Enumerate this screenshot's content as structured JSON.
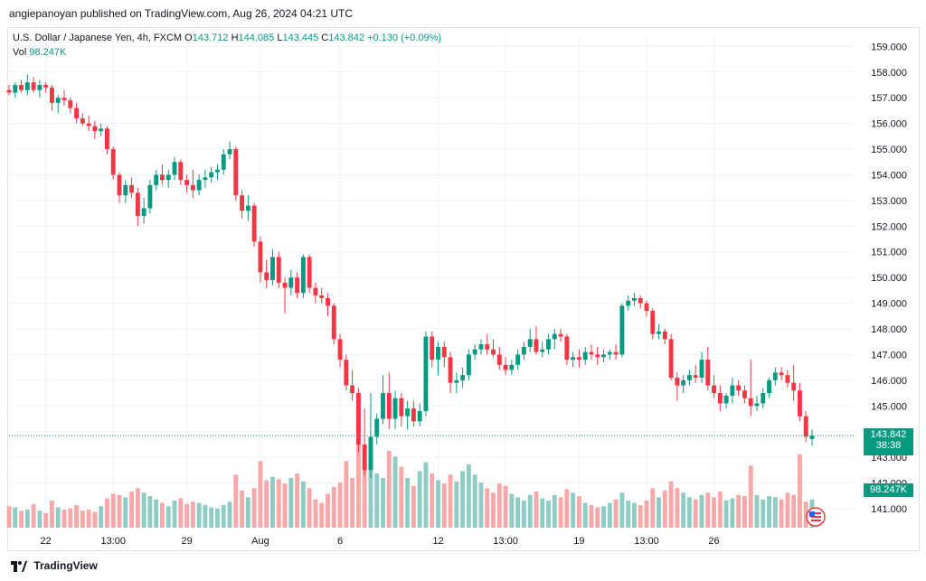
{
  "header": {
    "published_by": "angiepanoyan published on TradingView.com, Aug 26, 2024 04:21 UTC"
  },
  "legend": {
    "symbol": "U.S. Dollar / Japanese Yen, 4h, FXCM",
    "o_label": "O",
    "o_value": "143.712",
    "h_label": "H",
    "h_value": "144.085",
    "l_label": "L",
    "l_value": "143.445",
    "c_label": "C",
    "c_value": "143.842",
    "change": "+0.130 (+0.09%)",
    "vol_label": "Vol",
    "vol_value": "98.247K"
  },
  "badges": {
    "price": "143.842",
    "countdown": "38:38",
    "volume": "98.247K"
  },
  "footer": {
    "brand": "TradingView"
  },
  "colors": {
    "up": "#089981",
    "down": "#f23645",
    "vol_up": "#8fcdc4",
    "vol_down": "#f7a9a9",
    "grid": "#f0f3fa"
  },
  "chart_data": {
    "type": "candlestick",
    "symbol": "USDJPY",
    "timeframe": "4h",
    "y_axis": {
      "ticks": [
        "141.000",
        "142.000",
        "143.000",
        "144.000",
        "145.000",
        "146.000",
        "147.000",
        "148.000",
        "149.000",
        "150.000",
        "151.000",
        "152.000",
        "153.000",
        "154.000",
        "155.000",
        "156.000",
        "157.000",
        "158.000",
        "159.000"
      ],
      "ylim": [
        140.4,
        159.4
      ]
    },
    "x_axis": {
      "ticks": [
        "22",
        "13:00",
        "29",
        "Aug",
        "6",
        "12",
        "13:00",
        "19",
        "13:00",
        "26"
      ],
      "tick_index": [
        6,
        17,
        29,
        41,
        54,
        70,
        81,
        93,
        104,
        115
      ]
    },
    "grid": true,
    "volume_max": 160,
    "bars": [
      {
        "o": 157.3,
        "h": 157.5,
        "l": 157.1,
        "c": 157.2,
        "v": 38
      },
      {
        "o": 157.2,
        "h": 157.6,
        "l": 157.0,
        "c": 157.5,
        "v": 36
      },
      {
        "o": 157.5,
        "h": 157.7,
        "l": 157.2,
        "c": 157.3,
        "v": 30
      },
      {
        "o": 157.3,
        "h": 157.9,
        "l": 157.1,
        "c": 157.6,
        "v": 32
      },
      {
        "o": 157.6,
        "h": 157.8,
        "l": 157.2,
        "c": 157.3,
        "v": 42
      },
      {
        "o": 157.3,
        "h": 157.7,
        "l": 157.0,
        "c": 157.5,
        "v": 30
      },
      {
        "o": 157.5,
        "h": 157.6,
        "l": 157.2,
        "c": 157.4,
        "v": 26
      },
      {
        "o": 157.4,
        "h": 157.5,
        "l": 156.5,
        "c": 156.8,
        "v": 48
      },
      {
        "o": 156.8,
        "h": 157.1,
        "l": 156.4,
        "c": 157.0,
        "v": 36
      },
      {
        "o": 157.0,
        "h": 157.3,
        "l": 156.7,
        "c": 156.9,
        "v": 32
      },
      {
        "o": 156.9,
        "h": 157.0,
        "l": 156.4,
        "c": 156.6,
        "v": 34
      },
      {
        "o": 156.6,
        "h": 156.8,
        "l": 156.0,
        "c": 156.2,
        "v": 40
      },
      {
        "o": 156.2,
        "h": 156.4,
        "l": 155.9,
        "c": 156.0,
        "v": 30
      },
      {
        "o": 156.0,
        "h": 156.3,
        "l": 155.7,
        "c": 155.9,
        "v": 32
      },
      {
        "o": 155.9,
        "h": 156.1,
        "l": 155.4,
        "c": 155.7,
        "v": 28
      },
      {
        "o": 155.7,
        "h": 156.0,
        "l": 155.5,
        "c": 155.8,
        "v": 38
      },
      {
        "o": 155.8,
        "h": 155.9,
        "l": 154.8,
        "c": 155.0,
        "v": 52
      },
      {
        "o": 155.0,
        "h": 155.1,
        "l": 153.8,
        "c": 154.0,
        "v": 60
      },
      {
        "o": 154.0,
        "h": 154.1,
        "l": 152.9,
        "c": 153.2,
        "v": 58
      },
      {
        "o": 153.2,
        "h": 153.8,
        "l": 152.9,
        "c": 153.6,
        "v": 54
      },
      {
        "o": 153.6,
        "h": 153.9,
        "l": 153.1,
        "c": 153.3,
        "v": 64
      },
      {
        "o": 153.3,
        "h": 153.5,
        "l": 152.0,
        "c": 152.4,
        "v": 70
      },
      {
        "o": 152.4,
        "h": 153.1,
        "l": 152.1,
        "c": 152.7,
        "v": 62
      },
      {
        "o": 152.7,
        "h": 153.8,
        "l": 152.5,
        "c": 153.6,
        "v": 56
      },
      {
        "o": 153.6,
        "h": 154.2,
        "l": 153.4,
        "c": 154.0,
        "v": 50
      },
      {
        "o": 154.0,
        "h": 154.4,
        "l": 153.6,
        "c": 153.8,
        "v": 44
      },
      {
        "o": 153.8,
        "h": 154.2,
        "l": 153.5,
        "c": 154.0,
        "v": 38
      },
      {
        "o": 154.0,
        "h": 154.7,
        "l": 153.8,
        "c": 154.5,
        "v": 48
      },
      {
        "o": 154.5,
        "h": 154.6,
        "l": 153.6,
        "c": 153.8,
        "v": 52
      },
      {
        "o": 153.8,
        "h": 154.0,
        "l": 153.3,
        "c": 153.6,
        "v": 42
      },
      {
        "o": 153.6,
        "h": 154.2,
        "l": 153.1,
        "c": 153.4,
        "v": 46
      },
      {
        "o": 153.4,
        "h": 154.0,
        "l": 153.2,
        "c": 153.8,
        "v": 44
      },
      {
        "o": 153.8,
        "h": 154.2,
        "l": 153.5,
        "c": 153.9,
        "v": 40
      },
      {
        "o": 153.9,
        "h": 154.3,
        "l": 153.7,
        "c": 154.1,
        "v": 36
      },
      {
        "o": 154.1,
        "h": 154.4,
        "l": 153.8,
        "c": 154.2,
        "v": 34
      },
      {
        "o": 154.2,
        "h": 155.0,
        "l": 154.0,
        "c": 154.8,
        "v": 40
      },
      {
        "o": 154.8,
        "h": 155.3,
        "l": 154.6,
        "c": 155.0,
        "v": 46
      },
      {
        "o": 155.0,
        "h": 155.1,
        "l": 153.0,
        "c": 153.2,
        "v": 94
      },
      {
        "o": 153.2,
        "h": 153.4,
        "l": 152.3,
        "c": 152.6,
        "v": 66
      },
      {
        "o": 152.6,
        "h": 153.2,
        "l": 152.2,
        "c": 152.8,
        "v": 54
      },
      {
        "o": 152.8,
        "h": 152.9,
        "l": 151.2,
        "c": 151.4,
        "v": 70
      },
      {
        "o": 151.4,
        "h": 151.6,
        "l": 149.8,
        "c": 150.2,
        "v": 118
      },
      {
        "o": 150.2,
        "h": 150.7,
        "l": 149.6,
        "c": 149.9,
        "v": 84
      },
      {
        "o": 149.9,
        "h": 151.1,
        "l": 149.7,
        "c": 150.8,
        "v": 90
      },
      {
        "o": 150.8,
        "h": 151.0,
        "l": 149.6,
        "c": 149.8,
        "v": 86
      },
      {
        "o": 149.8,
        "h": 150.0,
        "l": 148.6,
        "c": 149.6,
        "v": 78
      },
      {
        "o": 149.6,
        "h": 150.3,
        "l": 149.3,
        "c": 150.0,
        "v": 88
      },
      {
        "o": 150.0,
        "h": 150.2,
        "l": 149.2,
        "c": 149.4,
        "v": 96
      },
      {
        "o": 149.4,
        "h": 150.9,
        "l": 149.2,
        "c": 150.8,
        "v": 82
      },
      {
        "o": 150.8,
        "h": 150.9,
        "l": 149.4,
        "c": 149.6,
        "v": 70
      },
      {
        "o": 149.6,
        "h": 149.8,
        "l": 149.0,
        "c": 149.3,
        "v": 50
      },
      {
        "o": 149.3,
        "h": 149.6,
        "l": 149.0,
        "c": 149.2,
        "v": 44
      },
      {
        "o": 149.2,
        "h": 149.4,
        "l": 148.5,
        "c": 148.9,
        "v": 60
      },
      {
        "o": 148.9,
        "h": 149.0,
        "l": 147.4,
        "c": 147.6,
        "v": 72
      },
      {
        "o": 147.6,
        "h": 147.8,
        "l": 146.5,
        "c": 146.8,
        "v": 80
      },
      {
        "o": 146.8,
        "h": 147.0,
        "l": 145.6,
        "c": 145.8,
        "v": 118
      },
      {
        "o": 145.8,
        "h": 146.4,
        "l": 145.2,
        "c": 145.5,
        "v": 88
      },
      {
        "o": 145.5,
        "h": 145.7,
        "l": 143.2,
        "c": 143.5,
        "v": 148
      },
      {
        "o": 143.5,
        "h": 144.9,
        "l": 142.3,
        "c": 142.5,
        "v": 120
      },
      {
        "o": 142.5,
        "h": 145.5,
        "l": 142.2,
        "c": 143.8,
        "v": 132
      },
      {
        "o": 143.8,
        "h": 144.7,
        "l": 143.5,
        "c": 144.5,
        "v": 96
      },
      {
        "o": 144.5,
        "h": 146.2,
        "l": 144.3,
        "c": 145.5,
        "v": 88
      },
      {
        "o": 145.5,
        "h": 146.3,
        "l": 144.1,
        "c": 144.5,
        "v": 136
      },
      {
        "o": 144.5,
        "h": 145.6,
        "l": 144.1,
        "c": 145.3,
        "v": 126
      },
      {
        "o": 145.3,
        "h": 145.5,
        "l": 144.2,
        "c": 144.6,
        "v": 108
      },
      {
        "o": 144.6,
        "h": 145.2,
        "l": 144.1,
        "c": 144.9,
        "v": 88
      },
      {
        "o": 144.9,
        "h": 145.2,
        "l": 144.2,
        "c": 144.4,
        "v": 74
      },
      {
        "o": 144.4,
        "h": 145.1,
        "l": 144.2,
        "c": 144.8,
        "v": 100
      },
      {
        "o": 144.8,
        "h": 147.9,
        "l": 144.6,
        "c": 147.7,
        "v": 116
      },
      {
        "o": 147.7,
        "h": 147.9,
        "l": 146.5,
        "c": 146.8,
        "v": 96
      },
      {
        "o": 146.8,
        "h": 147.5,
        "l": 146.2,
        "c": 147.3,
        "v": 84
      },
      {
        "o": 147.3,
        "h": 147.5,
        "l": 146.5,
        "c": 146.9,
        "v": 78
      },
      {
        "o": 146.9,
        "h": 147.1,
        "l": 145.5,
        "c": 145.9,
        "v": 94
      },
      {
        "o": 145.9,
        "h": 146.3,
        "l": 145.5,
        "c": 146.0,
        "v": 82
      },
      {
        "o": 146.0,
        "h": 146.5,
        "l": 145.7,
        "c": 146.2,
        "v": 100
      },
      {
        "o": 146.2,
        "h": 147.2,
        "l": 146.0,
        "c": 147.0,
        "v": 112
      },
      {
        "o": 147.0,
        "h": 147.4,
        "l": 146.8,
        "c": 147.2,
        "v": 94
      },
      {
        "o": 147.2,
        "h": 147.6,
        "l": 147.0,
        "c": 147.4,
        "v": 80
      },
      {
        "o": 147.4,
        "h": 147.8,
        "l": 147.0,
        "c": 147.2,
        "v": 70
      },
      {
        "o": 147.2,
        "h": 147.6,
        "l": 146.9,
        "c": 147.0,
        "v": 62
      },
      {
        "o": 147.0,
        "h": 147.3,
        "l": 146.4,
        "c": 146.6,
        "v": 78
      },
      {
        "o": 146.6,
        "h": 146.9,
        "l": 146.2,
        "c": 146.4,
        "v": 74
      },
      {
        "o": 146.4,
        "h": 146.8,
        "l": 146.2,
        "c": 146.6,
        "v": 60
      },
      {
        "o": 146.6,
        "h": 147.2,
        "l": 146.4,
        "c": 147.0,
        "v": 54
      },
      {
        "o": 147.0,
        "h": 147.5,
        "l": 146.8,
        "c": 147.3,
        "v": 48
      },
      {
        "o": 147.3,
        "h": 148.0,
        "l": 147.1,
        "c": 147.6,
        "v": 58
      },
      {
        "o": 147.6,
        "h": 148.1,
        "l": 147.0,
        "c": 147.1,
        "v": 64
      },
      {
        "o": 147.1,
        "h": 147.5,
        "l": 146.9,
        "c": 147.2,
        "v": 52
      },
      {
        "o": 147.2,
        "h": 147.8,
        "l": 147.0,
        "c": 147.6,
        "v": 48
      },
      {
        "o": 147.6,
        "h": 148.0,
        "l": 147.2,
        "c": 147.8,
        "v": 58
      },
      {
        "o": 147.8,
        "h": 148.0,
        "l": 147.5,
        "c": 147.7,
        "v": 54
      },
      {
        "o": 147.7,
        "h": 147.8,
        "l": 146.6,
        "c": 146.8,
        "v": 68
      },
      {
        "o": 146.8,
        "h": 147.1,
        "l": 146.5,
        "c": 146.9,
        "v": 62
      },
      {
        "o": 146.9,
        "h": 147.2,
        "l": 146.5,
        "c": 146.8,
        "v": 56
      },
      {
        "o": 146.8,
        "h": 147.3,
        "l": 146.6,
        "c": 147.1,
        "v": 44
      },
      {
        "o": 147.1,
        "h": 147.4,
        "l": 146.8,
        "c": 147.0,
        "v": 40
      },
      {
        "o": 147.0,
        "h": 147.3,
        "l": 146.6,
        "c": 146.9,
        "v": 36
      },
      {
        "o": 146.9,
        "h": 147.2,
        "l": 146.7,
        "c": 147.0,
        "v": 38
      },
      {
        "o": 147.0,
        "h": 147.2,
        "l": 146.8,
        "c": 147.1,
        "v": 44
      },
      {
        "o": 147.1,
        "h": 147.4,
        "l": 146.8,
        "c": 147.0,
        "v": 50
      },
      {
        "o": 147.0,
        "h": 149.0,
        "l": 146.9,
        "c": 148.9,
        "v": 62
      },
      {
        "o": 148.9,
        "h": 149.3,
        "l": 148.7,
        "c": 149.1,
        "v": 48
      },
      {
        "o": 149.1,
        "h": 149.4,
        "l": 148.9,
        "c": 149.2,
        "v": 44
      },
      {
        "o": 149.2,
        "h": 149.3,
        "l": 148.8,
        "c": 149.0,
        "v": 40
      },
      {
        "o": 149.0,
        "h": 149.1,
        "l": 148.5,
        "c": 148.7,
        "v": 48
      },
      {
        "o": 148.7,
        "h": 148.8,
        "l": 147.6,
        "c": 147.8,
        "v": 70
      },
      {
        "o": 147.8,
        "h": 148.2,
        "l": 147.6,
        "c": 147.9,
        "v": 54
      },
      {
        "o": 147.9,
        "h": 148.0,
        "l": 147.4,
        "c": 147.6,
        "v": 66
      },
      {
        "o": 147.6,
        "h": 147.8,
        "l": 146.0,
        "c": 146.1,
        "v": 82
      },
      {
        "o": 146.1,
        "h": 146.3,
        "l": 145.2,
        "c": 145.8,
        "v": 70
      },
      {
        "o": 145.8,
        "h": 146.2,
        "l": 145.5,
        "c": 146.0,
        "v": 62
      },
      {
        "o": 146.0,
        "h": 146.4,
        "l": 145.8,
        "c": 146.2,
        "v": 54
      },
      {
        "o": 146.2,
        "h": 146.6,
        "l": 145.9,
        "c": 146.1,
        "v": 50
      },
      {
        "o": 146.1,
        "h": 147.1,
        "l": 145.9,
        "c": 146.8,
        "v": 58
      },
      {
        "o": 146.8,
        "h": 147.3,
        "l": 145.6,
        "c": 145.8,
        "v": 62
      },
      {
        "o": 145.8,
        "h": 146.2,
        "l": 145.3,
        "c": 145.5,
        "v": 54
      },
      {
        "o": 145.5,
        "h": 145.8,
        "l": 144.8,
        "c": 145.1,
        "v": 64
      },
      {
        "o": 145.1,
        "h": 145.5,
        "l": 144.9,
        "c": 145.4,
        "v": 48
      },
      {
        "o": 145.4,
        "h": 146.1,
        "l": 145.1,
        "c": 145.8,
        "v": 52
      },
      {
        "o": 145.8,
        "h": 146.0,
        "l": 145.4,
        "c": 145.6,
        "v": 58
      },
      {
        "o": 145.6,
        "h": 145.8,
        "l": 145.1,
        "c": 145.3,
        "v": 56
      },
      {
        "o": 145.3,
        "h": 146.8,
        "l": 144.6,
        "c": 145.0,
        "v": 110
      },
      {
        "o": 145.0,
        "h": 145.4,
        "l": 144.8,
        "c": 145.1,
        "v": 58
      },
      {
        "o": 145.1,
        "h": 145.7,
        "l": 144.9,
        "c": 145.5,
        "v": 50
      },
      {
        "o": 145.5,
        "h": 146.1,
        "l": 145.3,
        "c": 146.0,
        "v": 56
      },
      {
        "o": 146.0,
        "h": 146.5,
        "l": 145.8,
        "c": 146.3,
        "v": 54
      },
      {
        "o": 146.3,
        "h": 146.5,
        "l": 146.0,
        "c": 146.2,
        "v": 50
      },
      {
        "o": 146.2,
        "h": 146.4,
        "l": 145.7,
        "c": 145.9,
        "v": 62
      },
      {
        "o": 145.9,
        "h": 146.6,
        "l": 145.2,
        "c": 145.6,
        "v": 58
      },
      {
        "o": 145.6,
        "h": 145.9,
        "l": 144.4,
        "c": 144.6,
        "v": 130
      },
      {
        "o": 144.6,
        "h": 144.8,
        "l": 143.6,
        "c": 143.8,
        "v": 46
      },
      {
        "o": 143.712,
        "h": 144.085,
        "l": 143.445,
        "c": 143.842,
        "v": 50
      }
    ]
  }
}
